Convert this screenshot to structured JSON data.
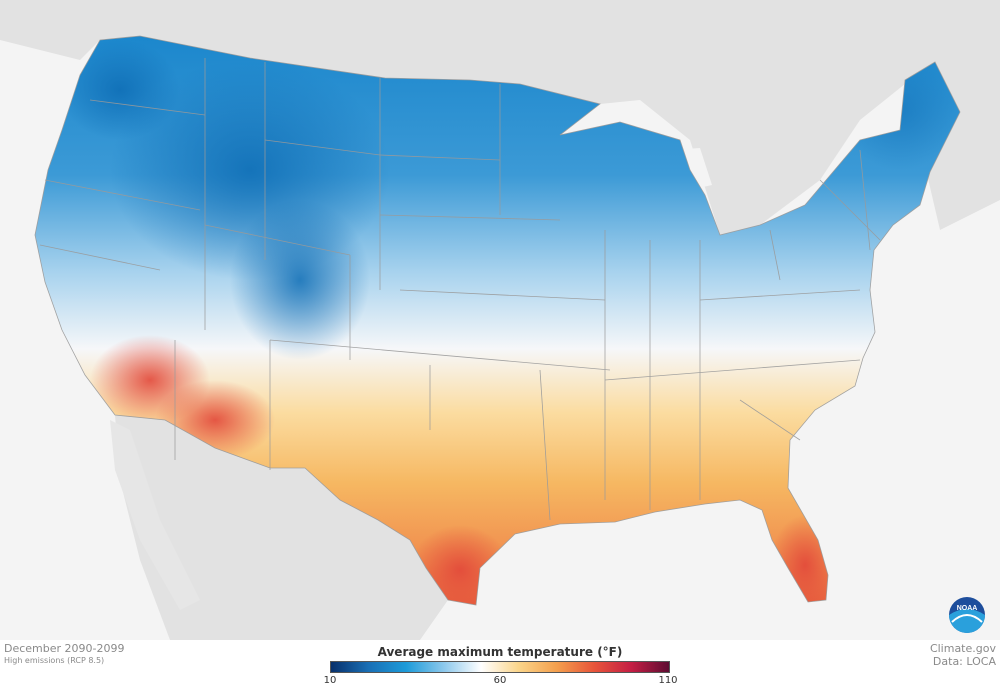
{
  "map": {
    "period": "December 2090-2099",
    "scenario": "High emissions (RCP 8.5)",
    "source_site": "Climate.gov",
    "source_data": "Data: LOCA",
    "logo_text": "NOAA"
  },
  "legend": {
    "title": "Average maximum temperature (°F)",
    "min_label": "10",
    "mid_label": "60",
    "max_label": "110",
    "colors": [
      "#08306b",
      "#1a6fb5",
      "#1d9bd9",
      "#8cc8ec",
      "#ffffff",
      "#fbd58a",
      "#f4a04e",
      "#e8553a",
      "#c41e44",
      "#5e0c32"
    ]
  },
  "colors": {
    "cold": "#1a86cc",
    "cool": "#8ec4e8",
    "neutral": "#f6f7f9",
    "warm": "#f8c26a",
    "hot": "#ec5e3e",
    "land_outside": "#e2e2e2",
    "water": "#f4f4f4",
    "borders": "#9a9a9a"
  }
}
